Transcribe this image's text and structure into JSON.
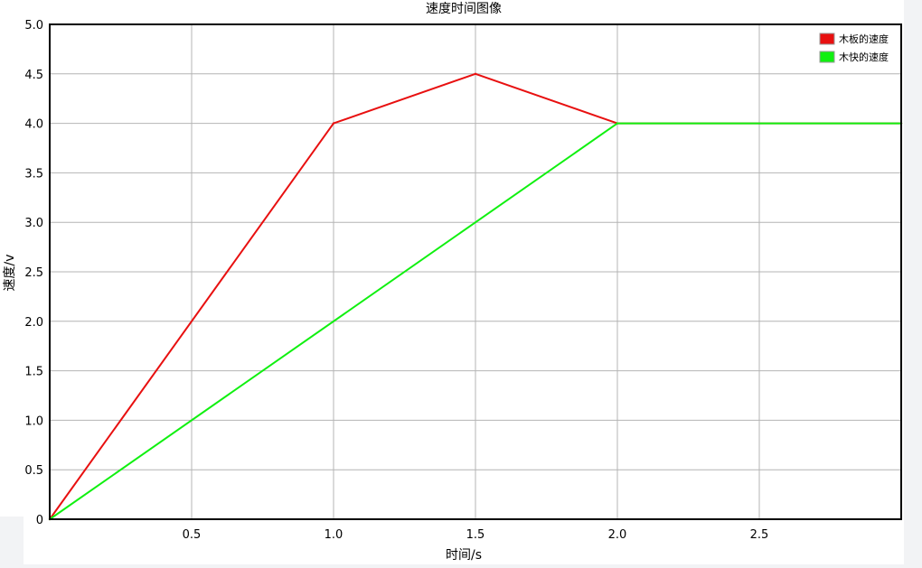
{
  "colors": {
    "panel": "#ffffff",
    "page_bg": "#f2f3f5",
    "grid": "#b4b4b4",
    "axis": "#000000",
    "text": "#000000",
    "board": "#e81010",
    "block": "#10f010"
  },
  "chart_data": {
    "type": "line",
    "title": "速度时间图像",
    "xlabel": "时间/s",
    "ylabel": "速度/v",
    "xlim": [
      0,
      3.0
    ],
    "ylim": [
      0,
      5.0
    ],
    "x_ticks": [
      0.5,
      1.0,
      1.5,
      2.0,
      2.5
    ],
    "x_tick_labels": [
      "0.5",
      "1.0",
      "1.5",
      "2.0",
      "2.5"
    ],
    "y_ticks": [
      0,
      0.5,
      1.0,
      1.5,
      2.0,
      2.5,
      3.0,
      3.5,
      4.0,
      4.5,
      5.0
    ],
    "y_tick_labels": [
      "0",
      "0.5",
      "1.0",
      "1.5",
      "2.0",
      "2.5",
      "3.0",
      "3.5",
      "4.0",
      "4.5",
      "5.0"
    ],
    "grid": true,
    "legend_position": "top-right",
    "series": [
      {
        "name": "木板的速度",
        "color": "#e81010",
        "x": [
          0,
          1.0,
          1.5,
          2.0,
          3.0
        ],
        "y": [
          0,
          4.0,
          4.5,
          4.0,
          4.0
        ]
      },
      {
        "name": "木快的速度",
        "color": "#10f010",
        "x": [
          0,
          2.0,
          3.0
        ],
        "y": [
          0,
          4.0,
          4.0
        ]
      }
    ]
  }
}
